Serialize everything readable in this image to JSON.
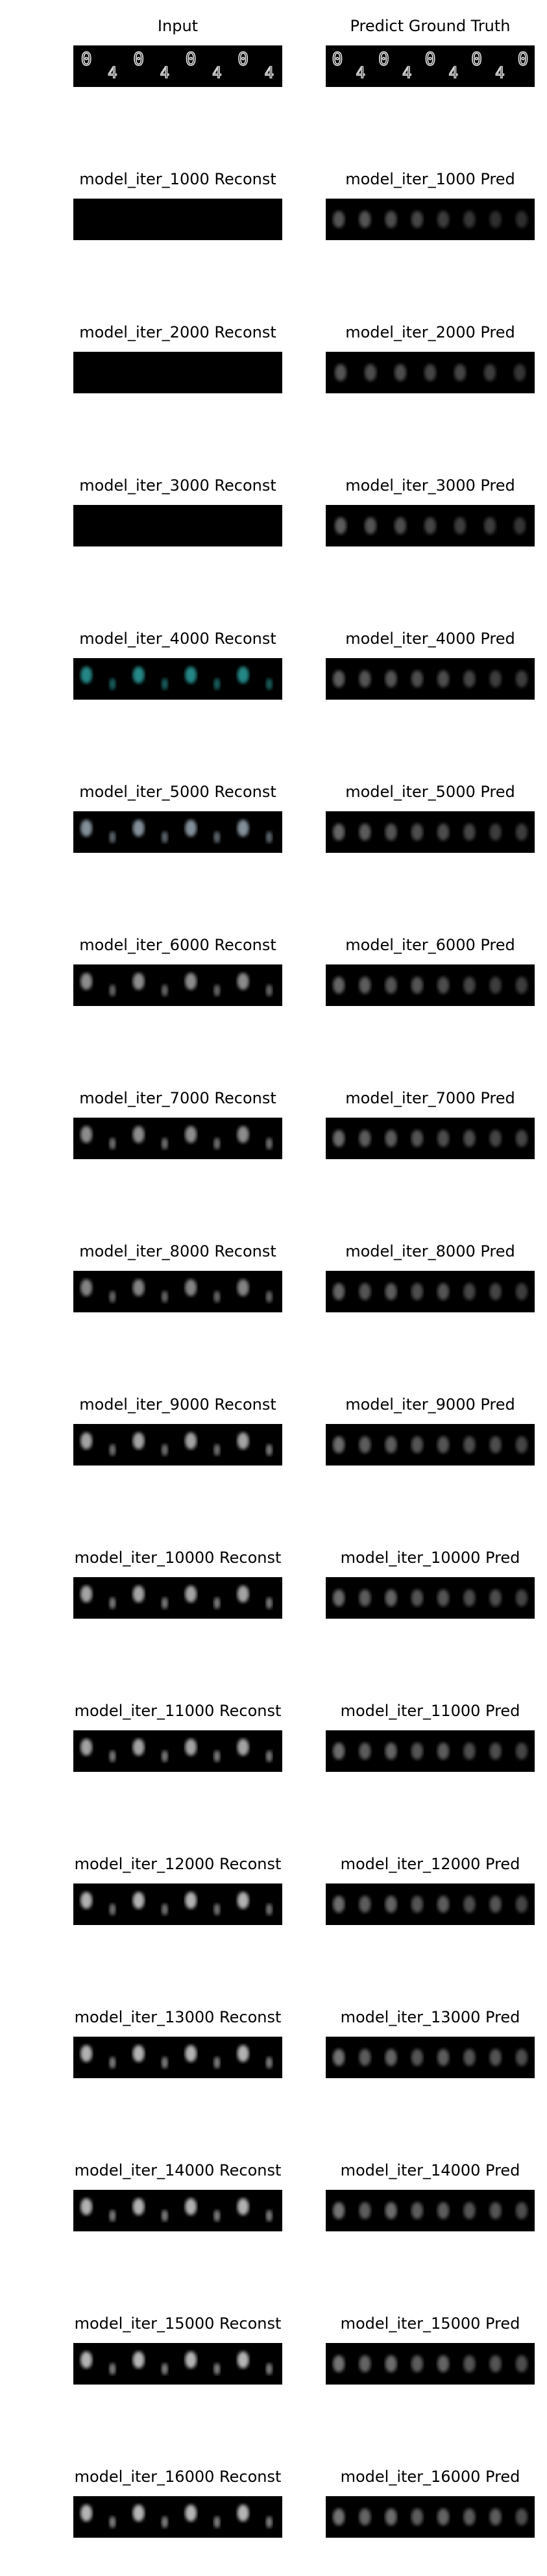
{
  "columns": [
    "Input",
    "Predict Ground Truth"
  ],
  "header_row": {
    "input_title": "Input",
    "truth_title": "Predict Ground Truth",
    "input_digits": [
      {
        "glyph": "0",
        "brightness": 1.0
      },
      {
        "glyph": "4",
        "brightness": 0.9
      },
      {
        "glyph": "0",
        "brightness": 1.0
      },
      {
        "glyph": "4",
        "brightness": 0.9
      },
      {
        "glyph": "0",
        "brightness": 1.0
      },
      {
        "glyph": "4",
        "brightness": 0.9
      },
      {
        "glyph": "0",
        "brightness": 1.0
      },
      {
        "glyph": "4",
        "brightness": 0.9
      }
    ],
    "truth_digits": [
      {
        "glyph": "0",
        "brightness": 1.0
      },
      {
        "glyph": "4",
        "brightness": 0.9
      },
      {
        "glyph": "0",
        "brightness": 1.0
      },
      {
        "glyph": "4",
        "brightness": 0.9
      },
      {
        "glyph": "0",
        "brightness": 1.0
      },
      {
        "glyph": "4",
        "brightness": 0.9
      },
      {
        "glyph": "0",
        "brightness": 1.0
      },
      {
        "glyph": "4",
        "brightness": 0.9
      },
      {
        "glyph": "0",
        "brightness": 1.0
      }
    ]
  },
  "rows": [
    {
      "recon_title": "model_iter_1000 Reconst",
      "pred_title": "model_iter_1000 Pred",
      "recon_blank": true,
      "recon_tint": "#777777",
      "recon_blobs": [],
      "pred_blobs": [
        0.55,
        0.55,
        0.5,
        0.45,
        0.4,
        0.35,
        0.3,
        0.3
      ]
    },
    {
      "recon_title": "model_iter_2000 Reconst",
      "pred_title": "model_iter_2000 Pred",
      "recon_blank": true,
      "recon_tint": "#777777",
      "recon_blobs": [],
      "pred_blobs": [
        0.55,
        0.5,
        0.5,
        0.45,
        0.45,
        0.4,
        0.35
      ]
    },
    {
      "recon_title": "model_iter_3000 Reconst",
      "pred_title": "model_iter_3000 Pred",
      "recon_blank": true,
      "recon_tint": "#777777",
      "recon_blobs": [],
      "pred_blobs": [
        0.6,
        0.55,
        0.5,
        0.45,
        0.4,
        0.4,
        0.35
      ]
    },
    {
      "recon_title": "model_iter_4000 Reconst",
      "pred_title": "model_iter_4000 Pred",
      "recon_blank": false,
      "recon_tint": "#2fa8a8",
      "recon_blobs": [
        0.8,
        0.55,
        0.8,
        0.55,
        0.8,
        0.55,
        0.8,
        0.55
      ],
      "pred_blobs": [
        0.6,
        0.55,
        0.55,
        0.5,
        0.5,
        0.45,
        0.4,
        0.4
      ]
    },
    {
      "recon_title": "model_iter_5000 Reconst",
      "pred_title": "model_iter_5000 Pred",
      "recon_blank": false,
      "recon_tint": "#9aa8b4",
      "recon_blobs": [
        0.85,
        0.6,
        0.85,
        0.6,
        0.85,
        0.6,
        0.85,
        0.6
      ],
      "pred_blobs": [
        0.65,
        0.6,
        0.55,
        0.5,
        0.5,
        0.45,
        0.4,
        0.4
      ]
    },
    {
      "recon_title": "model_iter_6000 Reconst",
      "pred_title": "model_iter_6000 Pred",
      "recon_blank": false,
      "recon_tint": "#bbbbbb",
      "recon_blobs": [
        0.75,
        0.55,
        0.75,
        0.55,
        0.75,
        0.55,
        0.75,
        0.55
      ],
      "pred_blobs": [
        0.65,
        0.6,
        0.55,
        0.55,
        0.5,
        0.45,
        0.4,
        0.4
      ]
    },
    {
      "recon_title": "model_iter_7000 Reconst",
      "pred_title": "model_iter_7000 Pred",
      "recon_blank": false,
      "recon_tint": "#bbbbbb",
      "recon_blobs": [
        0.75,
        0.6,
        0.75,
        0.6,
        0.75,
        0.6,
        0.75,
        0.6
      ],
      "pred_blobs": [
        0.7,
        0.6,
        0.6,
        0.55,
        0.5,
        0.5,
        0.45,
        0.45
      ]
    },
    {
      "recon_title": "model_iter_8000 Reconst",
      "pred_title": "model_iter_8000 Pred",
      "recon_blank": false,
      "recon_tint": "#bbbbbb",
      "recon_blobs": [
        0.7,
        0.55,
        0.7,
        0.55,
        0.7,
        0.55,
        0.7,
        0.55
      ],
      "pred_blobs": [
        0.65,
        0.55,
        0.6,
        0.5,
        0.55,
        0.45,
        0.45,
        0.4
      ]
    },
    {
      "recon_title": "model_iter_9000 Reconst",
      "pred_title": "model_iter_9000 Pred",
      "recon_blank": false,
      "recon_tint": "#cccccc",
      "recon_blobs": [
        0.8,
        0.55,
        0.8,
        0.55,
        0.8,
        0.55,
        0.8,
        0.6
      ],
      "pred_blobs": [
        0.7,
        0.6,
        0.6,
        0.55,
        0.55,
        0.5,
        0.5,
        0.45
      ]
    },
    {
      "recon_title": "model_iter_10000 Reconst",
      "pred_title": "model_iter_10000 Pred",
      "recon_blank": false,
      "recon_tint": "#cccccc",
      "recon_blobs": [
        0.8,
        0.6,
        0.8,
        0.6,
        0.8,
        0.6,
        0.8,
        0.6
      ],
      "pred_blobs": [
        0.7,
        0.6,
        0.65,
        0.55,
        0.55,
        0.5,
        0.5,
        0.45
      ]
    },
    {
      "recon_title": "model_iter_11000 Reconst",
      "pred_title": "model_iter_11000 Pred",
      "recon_blank": false,
      "recon_tint": "#cccccc",
      "recon_blobs": [
        0.8,
        0.6,
        0.8,
        0.6,
        0.8,
        0.6,
        0.8,
        0.6
      ],
      "pred_blobs": [
        0.7,
        0.6,
        0.65,
        0.55,
        0.6,
        0.5,
        0.5,
        0.45
      ]
    },
    {
      "recon_title": "model_iter_12000 Reconst",
      "pred_title": "model_iter_12000 Pred",
      "recon_blank": false,
      "recon_tint": "#d0d0d0",
      "recon_blobs": [
        0.85,
        0.55,
        0.85,
        0.55,
        0.85,
        0.55,
        0.85,
        0.55
      ],
      "pred_blobs": [
        0.7,
        0.6,
        0.65,
        0.55,
        0.6,
        0.5,
        0.55,
        0.45
      ]
    },
    {
      "recon_title": "model_iter_13000 Reconst",
      "pred_title": "model_iter_13000 Pred",
      "recon_blank": false,
      "recon_tint": "#d0d0d0",
      "recon_blobs": [
        0.85,
        0.6,
        0.85,
        0.6,
        0.85,
        0.6,
        0.85,
        0.6
      ],
      "pred_blobs": [
        0.75,
        0.6,
        0.65,
        0.55,
        0.6,
        0.55,
        0.55,
        0.5
      ]
    },
    {
      "recon_title": "model_iter_14000 Reconst",
      "pred_title": "model_iter_14000 Pred",
      "recon_blank": false,
      "recon_tint": "#d0d0d0",
      "recon_blobs": [
        0.85,
        0.6,
        0.85,
        0.6,
        0.85,
        0.6,
        0.85,
        0.6
      ],
      "pred_blobs": [
        0.75,
        0.6,
        0.7,
        0.6,
        0.6,
        0.55,
        0.55,
        0.5
      ]
    },
    {
      "recon_title": "model_iter_15000 Reconst",
      "pred_title": "model_iter_15000 Pred",
      "recon_blank": false,
      "recon_tint": "#d4d4d4",
      "recon_blobs": [
        0.85,
        0.6,
        0.85,
        0.6,
        0.85,
        0.6,
        0.85,
        0.6
      ],
      "pred_blobs": [
        0.75,
        0.65,
        0.7,
        0.6,
        0.65,
        0.55,
        0.55,
        0.5
      ]
    },
    {
      "recon_title": "model_iter_16000 Reconst",
      "pred_title": "model_iter_16000 Pred",
      "recon_blank": false,
      "recon_tint": "#d4d4d4",
      "recon_blobs": [
        0.85,
        0.6,
        0.85,
        0.6,
        0.85,
        0.6,
        0.85,
        0.6
      ],
      "pred_blobs": [
        0.75,
        0.65,
        0.7,
        0.6,
        0.65,
        0.6,
        0.6,
        0.5
      ]
    }
  ],
  "colors": {
    "page_background": "#ffffff",
    "panel_background": "#000000",
    "title_text": "#000000",
    "digit_stroke": "#e8e8e8"
  }
}
